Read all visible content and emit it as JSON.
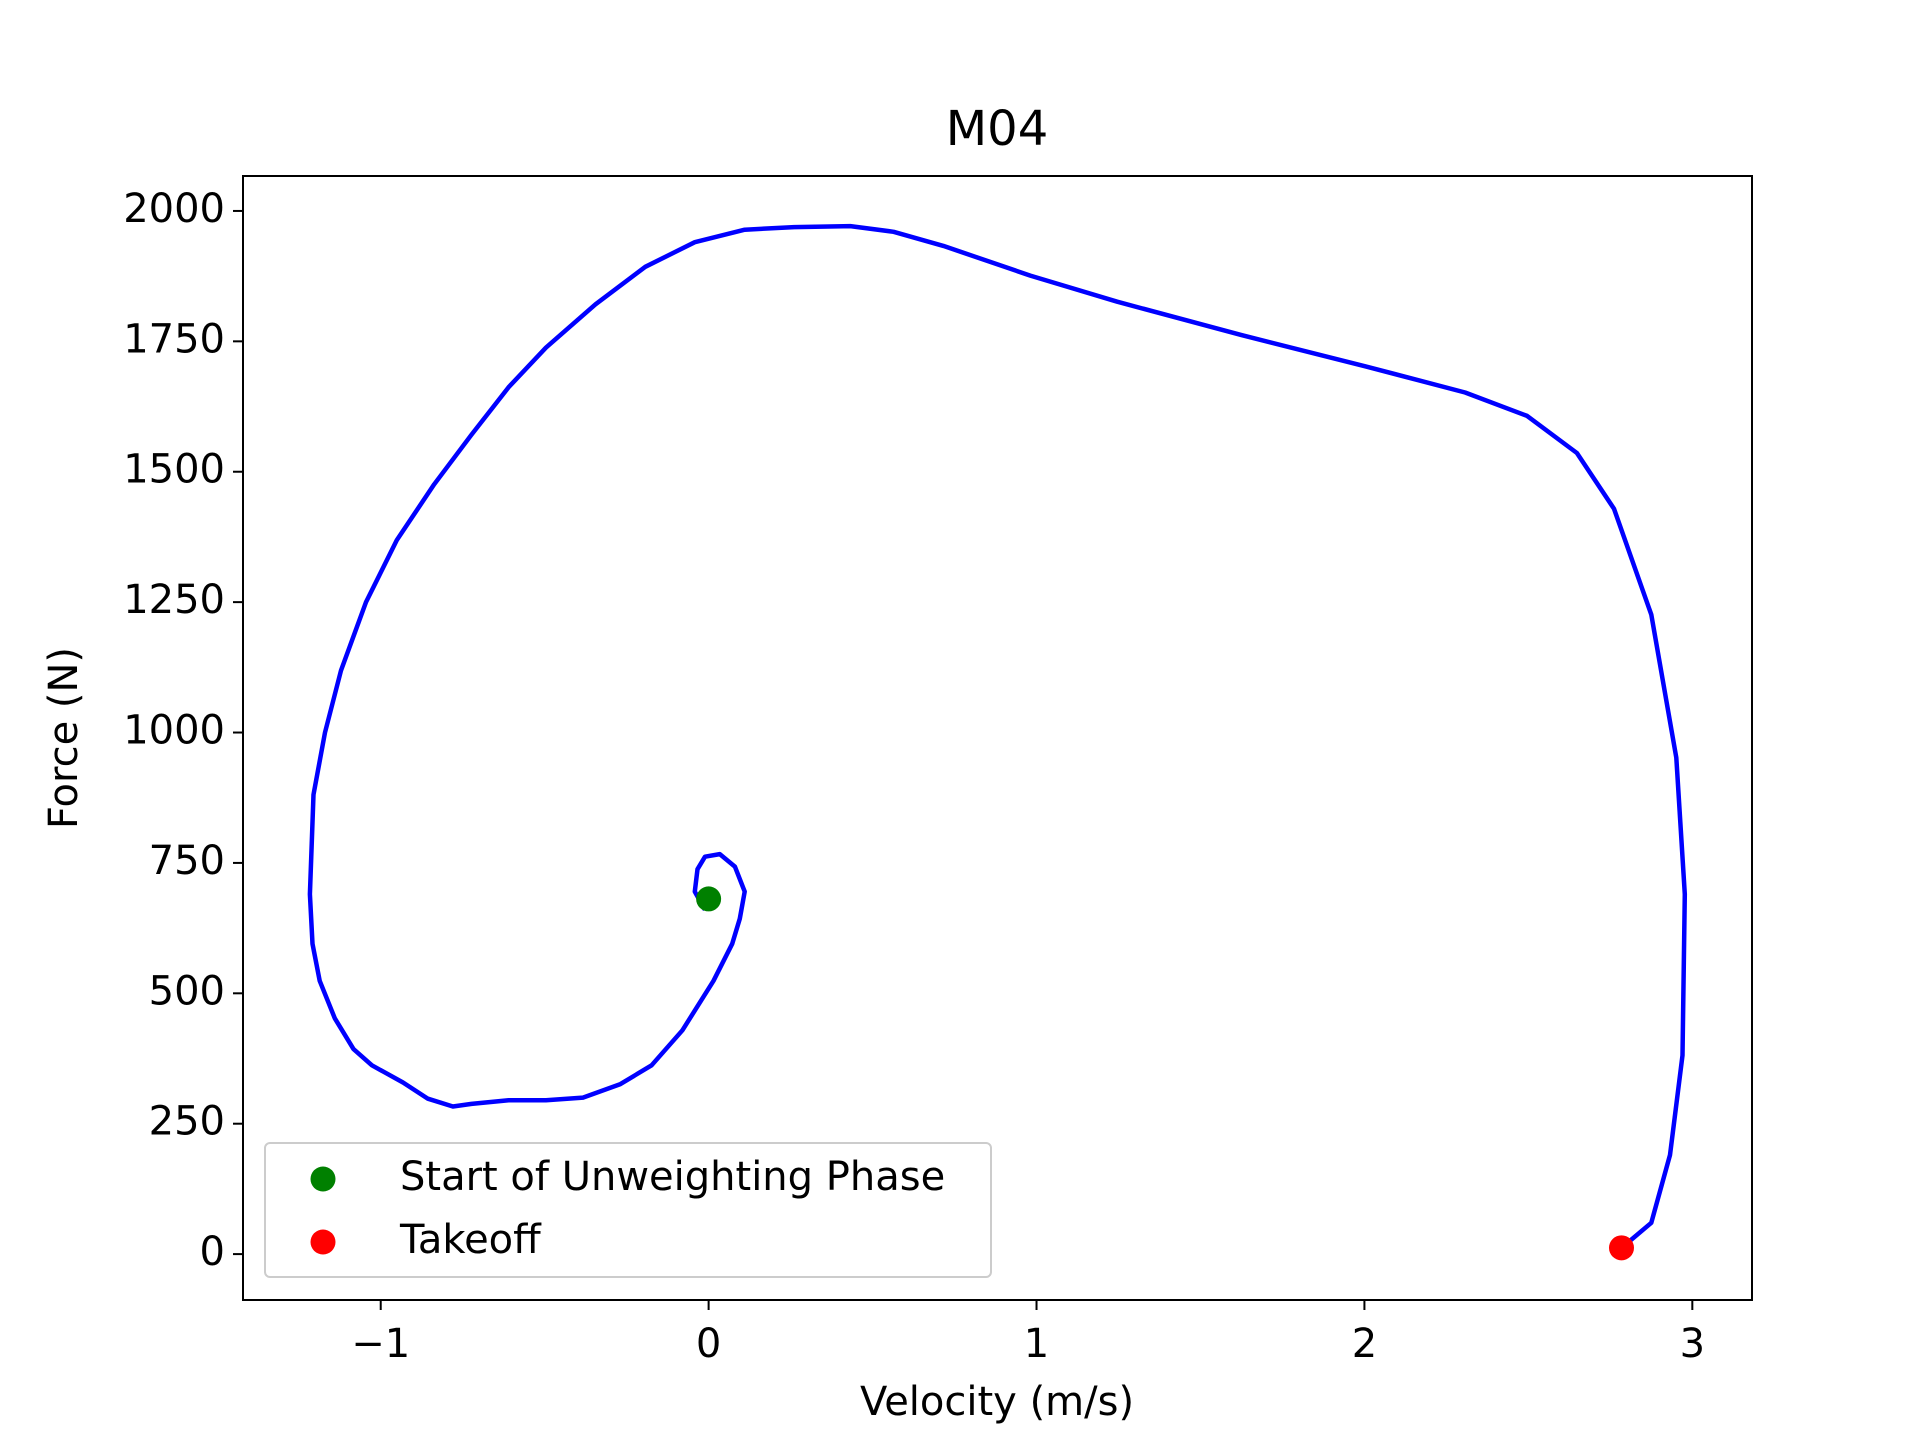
{
  "chart_data": {
    "type": "line",
    "title": "M04",
    "x_label": "Velocity (m/s)",
    "y_label": "Force (N)",
    "xlim": [
      -1.42,
      3.182
    ],
    "ylim": [
      -88,
      2067
    ],
    "xticks": [
      {
        "value": -1,
        "label": "−1"
      },
      0,
      1,
      2,
      3
    ],
    "yticks": [
      0,
      250,
      500,
      750,
      1000,
      1250,
      1500,
      1750,
      2000
    ],
    "grid": false,
    "legend": "lower left",
    "series": [
      {
        "color": "#0000ff",
        "x": [
          -0.011,
          -0.042,
          -0.034,
          -0.011,
          0.034,
          0.08,
          0.11,
          0.095,
          0.072,
          0.015,
          -0.08,
          -0.174,
          -0.269,
          -0.383,
          -0.496,
          -0.61,
          -0.723,
          -0.78,
          -0.856,
          -0.932,
          -1.027,
          -1.083,
          -1.14,
          -1.186,
          -1.208,
          -1.216,
          -1.205,
          -1.17,
          -1.121,
          -1.045,
          -0.951,
          -0.837,
          -0.723,
          -0.61,
          -0.496,
          -0.345,
          -0.193,
          -0.042,
          0.11,
          0.261,
          0.432,
          0.564,
          0.716,
          0.981,
          1.246,
          1.625,
          2.004,
          2.307,
          2.496,
          2.648,
          2.761,
          2.875,
          2.951,
          2.977,
          2.97,
          2.932,
          2.875,
          2.807
        ],
        "values": [
          660,
          695,
          738,
          762,
          767,
          743,
          695,
          643,
          595,
          524,
          429,
          362,
          326,
          300,
          295,
          295,
          288,
          283,
          298,
          329,
          362,
          393,
          452,
          524,
          595,
          690,
          881,
          1000,
          1119,
          1250,
          1369,
          1476,
          1571,
          1662,
          1738,
          1821,
          1893,
          1940,
          1964,
          1969,
          1971,
          1960,
          1933,
          1876,
          1826,
          1762,
          1702,
          1652,
          1607,
          1536,
          1429,
          1226,
          952,
          690,
          381,
          190,
          60,
          24
        ]
      },
      {
        "name": "Start of Unweighting Phase",
        "color": "#008000",
        "marker": "o",
        "x": [
          0.0
        ],
        "values": [
          681
        ]
      },
      {
        "name": "Takeoff",
        "color": "#ff0000",
        "marker": "o",
        "x": [
          2.784
        ],
        "values": [
          12
        ]
      }
    ]
  }
}
